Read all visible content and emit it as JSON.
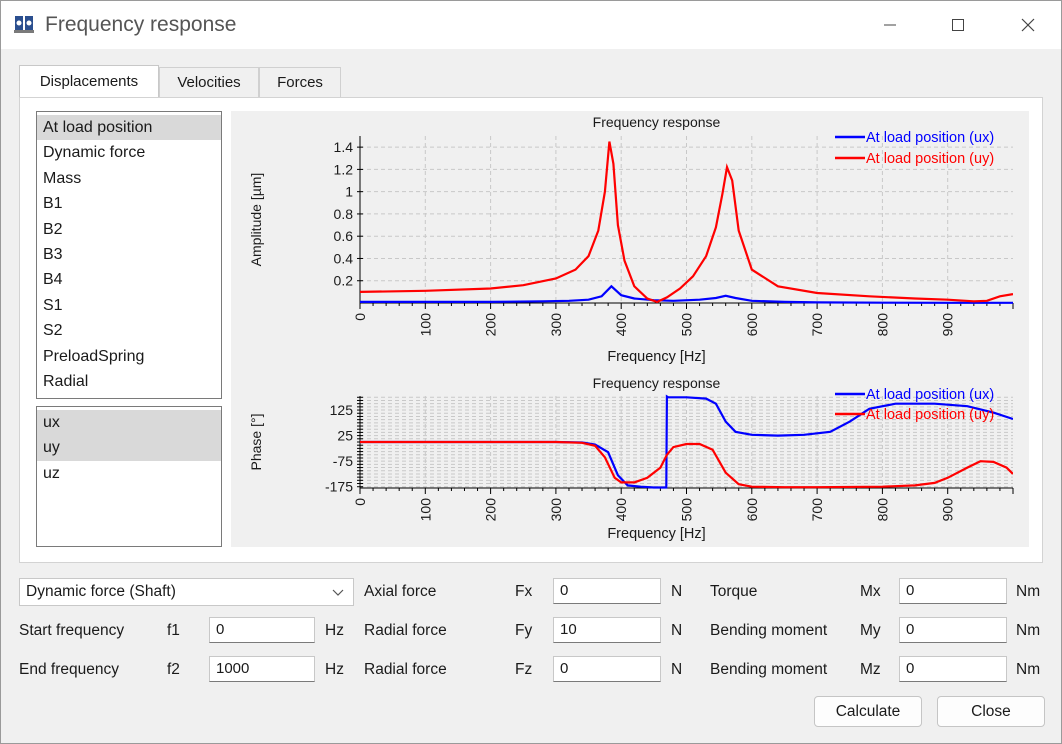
{
  "window": {
    "title": "Frequency response",
    "icon": "app-logo-icon",
    "controls": [
      "minimize-icon",
      "maximize-icon",
      "close-icon"
    ]
  },
  "tabs": [
    {
      "label": "Displacements",
      "active": true
    },
    {
      "label": "Velocities",
      "active": false
    },
    {
      "label": "Forces",
      "active": false
    }
  ],
  "positions": {
    "items": [
      "At load position",
      "Dynamic force",
      "Mass",
      "B1",
      "B2",
      "B3",
      "B4",
      "S1",
      "S2",
      "PreloadSpring",
      "Radial"
    ],
    "selected": "At load position"
  },
  "directions": {
    "items": [
      "ux",
      "uy",
      "uz"
    ],
    "selected": [
      "ux",
      "uy"
    ]
  },
  "colors": {
    "ux": "#0000ff",
    "uy": "#ff0000",
    "grid": "#c8c8c8"
  },
  "chart_data": [
    {
      "type": "line",
      "title": "Frequency response",
      "xlabel": "Frequency [Hz]",
      "ylabel": "Amplitude [µm]",
      "xlim": [
        0,
        1000
      ],
      "ylim": [
        0,
        1.5
      ],
      "xticks": [
        "0",
        "100",
        "200",
        "300",
        "400",
        "500",
        "600",
        "700",
        "800",
        "900"
      ],
      "yticks": [
        "0.2",
        "0.4",
        "0.6",
        "0.8",
        "1",
        "1.2",
        "1.4"
      ],
      "grid": true,
      "legend": "top-right",
      "series": [
        {
          "name": "At load position (ux)",
          "color": "#0000ff",
          "x": [
            0,
            100,
            200,
            280,
            320,
            350,
            370,
            385,
            400,
            420,
            450,
            480,
            520,
            545,
            560,
            575,
            600,
            650,
            700,
            800,
            900,
            1000
          ],
          "y": [
            0.01,
            0.01,
            0.01,
            0.015,
            0.02,
            0.03,
            0.06,
            0.15,
            0.07,
            0.04,
            0.025,
            0.02,
            0.03,
            0.045,
            0.065,
            0.045,
            0.02,
            0.01,
            0.005,
            0.003,
            0.002,
            0.002
          ]
        },
        {
          "name": "At load position (uy)",
          "color": "#ff0000",
          "x": [
            0,
            100,
            200,
            250,
            300,
            330,
            350,
            365,
            375,
            382,
            388,
            395,
            405,
            420,
            440,
            455,
            470,
            490,
            510,
            530,
            545,
            555,
            562,
            570,
            580,
            600,
            640,
            700,
            780,
            850,
            900,
            940,
            960,
            980,
            1000
          ],
          "y": [
            0.1,
            0.11,
            0.13,
            0.16,
            0.22,
            0.3,
            0.42,
            0.65,
            1.0,
            1.45,
            1.25,
            0.7,
            0.38,
            0.15,
            0.04,
            0.01,
            0.05,
            0.13,
            0.24,
            0.42,
            0.68,
            0.98,
            1.22,
            1.1,
            0.65,
            0.3,
            0.15,
            0.09,
            0.06,
            0.04,
            0.03,
            0.015,
            0.02,
            0.06,
            0.08
          ]
        }
      ]
    },
    {
      "type": "line",
      "title": "Frequency response",
      "xlabel": "Frequency [Hz]",
      "ylabel": "Phase [°]",
      "xlim": [
        0,
        1000
      ],
      "ylim": [
        -180,
        180
      ],
      "xticks": [
        "0",
        "100",
        "200",
        "300",
        "400",
        "500",
        "600",
        "700",
        "800",
        "900"
      ],
      "yticks": [
        "125",
        "25",
        "-75",
        "-175"
      ],
      "grid": true,
      "legend": "top-right",
      "series": [
        {
          "name": "At load position (ux)",
          "color": "#0000ff",
          "x": [
            0,
            100,
            200,
            300,
            340,
            360,
            380,
            395,
            410,
            430,
            450,
            469,
            470,
            472,
            480,
            500,
            530,
            545,
            560,
            575,
            600,
            640,
            680,
            720,
            750,
            780,
            820,
            880,
            930,
            970,
            1000
          ],
          "y": [
            0,
            0,
            0,
            0,
            -2,
            -10,
            -40,
            -130,
            -170,
            -175,
            -178,
            -178,
            178,
            175,
            175,
            175,
            170,
            150,
            80,
            40,
            28,
            25,
            28,
            40,
            80,
            130,
            150,
            150,
            140,
            115,
            90
          ]
        },
        {
          "name": "At load position (uy)",
          "color": "#ff0000",
          "x": [
            0,
            100,
            200,
            300,
            340,
            360,
            375,
            390,
            400,
            420,
            440,
            460,
            470,
            480,
            500,
            520,
            540,
            560,
            580,
            600,
            650,
            700,
            800,
            850,
            880,
            900,
            930,
            950,
            970,
            990,
            1000
          ],
          "y": [
            0,
            0,
            0,
            0,
            -3,
            -15,
            -60,
            -140,
            -158,
            -158,
            -140,
            -100,
            -50,
            -20,
            -8,
            -8,
            -30,
            -120,
            -165,
            -175,
            -177,
            -177,
            -175,
            -170,
            -160,
            -140,
            -100,
            -75,
            -78,
            -100,
            -125
          ]
        }
      ]
    }
  ],
  "form": {
    "dynamic_force_select": "Dynamic force (Shaft)",
    "start_frequency": {
      "label": "Start frequency",
      "symbol": "f1",
      "value": "0",
      "unit": "Hz"
    },
    "end_frequency": {
      "label": "End frequency",
      "symbol": "f2",
      "value": "1000",
      "unit": "Hz"
    },
    "axial_force": {
      "label": "Axial force",
      "symbol": "Fx",
      "value": "0",
      "unit": "N"
    },
    "radial_force_y": {
      "label": "Radial force",
      "symbol": "Fy",
      "value": "10",
      "unit": "N"
    },
    "radial_force_z": {
      "label": "Radial force",
      "symbol": "Fz",
      "value": "0",
      "unit": "N"
    },
    "torque": {
      "label": "Torque",
      "symbol": "Mx",
      "value": "0",
      "unit": "Nm"
    },
    "bending_moment_y": {
      "label": "Bending moment",
      "symbol": "My",
      "value": "0",
      "unit": "Nm"
    },
    "bending_moment_z": {
      "label": "Bending moment",
      "symbol": "Mz",
      "value": "0",
      "unit": "Nm"
    }
  },
  "buttons": {
    "calculate": "Calculate",
    "close": "Close"
  }
}
